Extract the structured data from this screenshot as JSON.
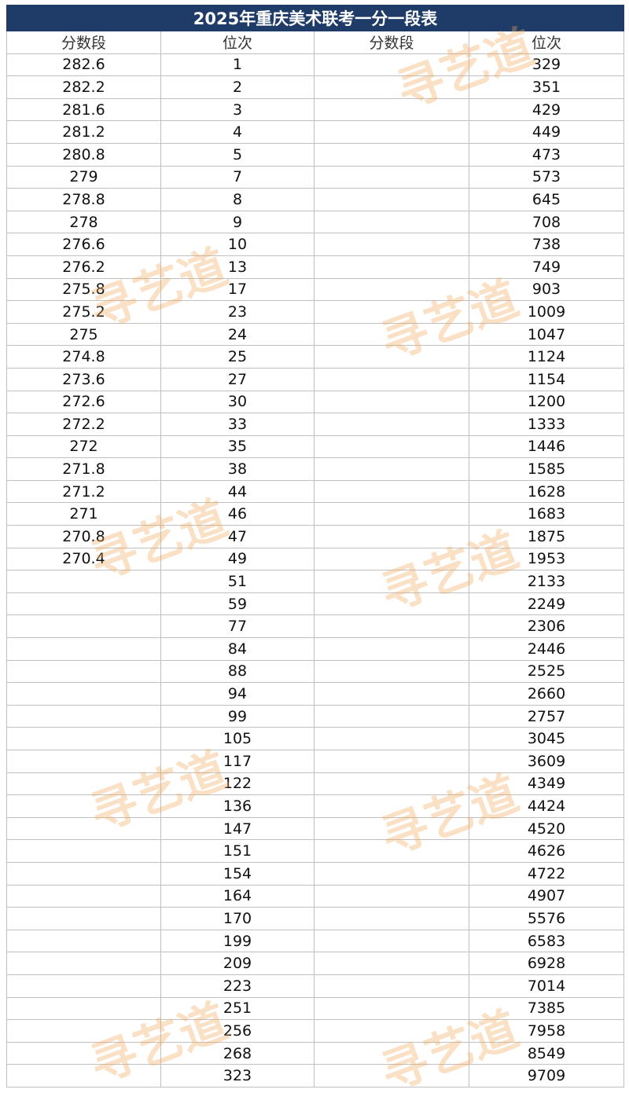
{
  "title": "2025年重庆美术联考一分一段表",
  "watermark": "寻艺道",
  "table": {
    "headers": [
      "分数段",
      "位次",
      "分数段",
      "位次"
    ],
    "rows": [
      [
        282.6,
        1,
        null,
        329
      ],
      [
        282.2,
        2,
        null,
        351
      ],
      [
        281.6,
        3,
        null,
        429
      ],
      [
        281.2,
        4,
        null,
        449
      ],
      [
        280.8,
        5,
        null,
        473
      ],
      [
        279,
        7,
        null,
        573
      ],
      [
        278.8,
        8,
        null,
        645
      ],
      [
        278,
        9,
        null,
        708
      ],
      [
        276.6,
        10,
        null,
        738
      ],
      [
        276.2,
        13,
        null,
        749
      ],
      [
        275.8,
        17,
        null,
        903
      ],
      [
        275.2,
        23,
        null,
        1009
      ],
      [
        275,
        24,
        null,
        1047
      ],
      [
        274.8,
        25,
        null,
        1124
      ],
      [
        273.6,
        27,
        null,
        1154
      ],
      [
        272.6,
        30,
        null,
        1200
      ],
      [
        272.2,
        33,
        null,
        1333
      ],
      [
        272,
        35,
        null,
        1446
      ],
      [
        271.8,
        38,
        null,
        1585
      ],
      [
        271.2,
        44,
        null,
        1628
      ],
      [
        271,
        46,
        null,
        1683
      ],
      [
        270.8,
        47,
        null,
        1875
      ],
      [
        270.4,
        49,
        null,
        1953
      ],
      [
        null,
        51,
        null,
        2133
      ],
      [
        null,
        59,
        null,
        2249
      ],
      [
        null,
        77,
        null,
        2306
      ],
      [
        null,
        84,
        null,
        2446
      ],
      [
        null,
        88,
        null,
        2525
      ],
      [
        null,
        94,
        null,
        2660
      ],
      [
        null,
        99,
        null,
        2757
      ],
      [
        null,
        105,
        null,
        3045
      ],
      [
        null,
        117,
        null,
        3609
      ],
      [
        null,
        122,
        null,
        4349
      ],
      [
        null,
        136,
        null,
        4424
      ],
      [
        null,
        147,
        null,
        4520
      ],
      [
        null,
        151,
        null,
        4626
      ],
      [
        null,
        154,
        null,
        4722
      ],
      [
        null,
        164,
        null,
        4907
      ],
      [
        null,
        170,
        null,
        5576
      ],
      [
        null,
        199,
        null,
        6583
      ],
      [
        null,
        209,
        null,
        6928
      ],
      [
        null,
        223,
        null,
        7014
      ],
      [
        null,
        251,
        null,
        7385
      ],
      [
        null,
        256,
        null,
        7958
      ],
      [
        null,
        268,
        null,
        8549
      ],
      [
        null,
        323,
        null,
        9709
      ]
    ]
  }
}
